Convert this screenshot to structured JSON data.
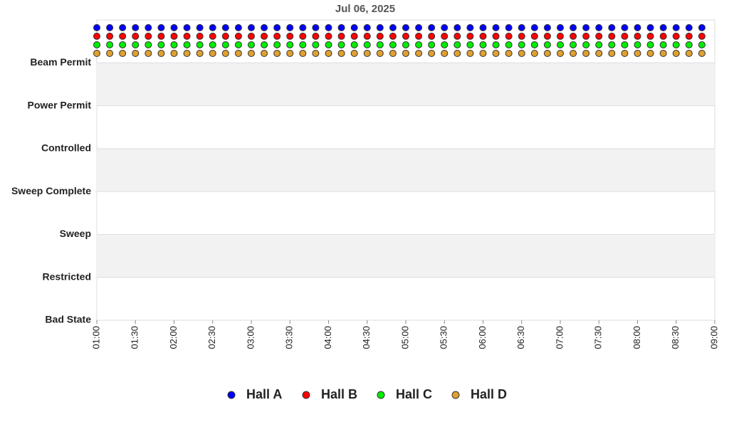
{
  "chart_data": {
    "type": "scatter",
    "title": "Jul 06, 2025",
    "x": [
      "01:00",
      "01:10",
      "01:20",
      "01:30",
      "01:40",
      "01:50",
      "02:00",
      "02:10",
      "02:20",
      "02:30",
      "02:40",
      "02:50",
      "03:00",
      "03:10",
      "03:20",
      "03:30",
      "03:40",
      "03:50",
      "04:00",
      "04:10",
      "04:20",
      "04:30",
      "04:40",
      "04:50",
      "05:00",
      "05:10",
      "05:20",
      "05:30",
      "05:40",
      "05:50",
      "06:00",
      "06:10",
      "06:20",
      "06:30",
      "06:40",
      "06:50",
      "07:00",
      "07:10",
      "07:20",
      "07:30",
      "07:40",
      "07:50",
      "08:00",
      "08:10",
      "08:20",
      "08:30",
      "08:40",
      "08:50"
    ],
    "series": [
      {
        "name": "Hall A",
        "color": "#0000ff",
        "values": [
          6.82,
          6.82,
          6.82,
          6.82,
          6.82,
          6.82,
          6.82,
          6.82,
          6.82,
          6.82,
          6.82,
          6.82,
          6.82,
          6.82,
          6.82,
          6.82,
          6.82,
          6.82,
          6.82,
          6.82,
          6.82,
          6.82,
          6.82,
          6.82,
          6.82,
          6.82,
          6.82,
          6.82,
          6.82,
          6.82,
          6.82,
          6.82,
          6.82,
          6.82,
          6.82,
          6.82,
          6.82,
          6.82,
          6.82,
          6.82,
          6.82,
          6.82,
          6.82,
          6.82,
          6.82,
          6.82,
          6.82,
          6.82
        ]
      },
      {
        "name": "Hall B",
        "color": "#ff0000",
        "values": [
          6.62,
          6.62,
          6.62,
          6.62,
          6.62,
          6.62,
          6.62,
          6.62,
          6.62,
          6.62,
          6.62,
          6.62,
          6.62,
          6.62,
          6.62,
          6.62,
          6.62,
          6.62,
          6.62,
          6.62,
          6.62,
          6.62,
          6.62,
          6.62,
          6.62,
          6.62,
          6.62,
          6.62,
          6.62,
          6.62,
          6.62,
          6.62,
          6.62,
          6.62,
          6.62,
          6.62,
          6.62,
          6.62,
          6.62,
          6.62,
          6.62,
          6.62,
          6.62,
          6.62,
          6.62,
          6.62,
          6.62,
          6.62
        ]
      },
      {
        "name": "Hall C",
        "color": "#00ee00",
        "values": [
          6.42,
          6.42,
          6.42,
          6.42,
          6.42,
          6.42,
          6.42,
          6.42,
          6.42,
          6.42,
          6.42,
          6.42,
          6.42,
          6.42,
          6.42,
          6.42,
          6.42,
          6.42,
          6.42,
          6.42,
          6.42,
          6.42,
          6.42,
          6.42,
          6.42,
          6.42,
          6.42,
          6.42,
          6.42,
          6.42,
          6.42,
          6.42,
          6.42,
          6.42,
          6.42,
          6.42,
          6.42,
          6.42,
          6.42,
          6.42,
          6.42,
          6.42,
          6.42,
          6.42,
          6.42,
          6.42,
          6.42,
          6.42
        ]
      },
      {
        "name": "Hall D",
        "color": "#e0a030",
        "values": [
          6.22,
          6.22,
          6.22,
          6.22,
          6.22,
          6.22,
          6.22,
          6.22,
          6.22,
          6.22,
          6.22,
          6.22,
          6.22,
          6.22,
          6.22,
          6.22,
          6.22,
          6.22,
          6.22,
          6.22,
          6.22,
          6.22,
          6.22,
          6.22,
          6.22,
          6.22,
          6.22,
          6.22,
          6.22,
          6.22,
          6.22,
          6.22,
          6.22,
          6.22,
          6.22,
          6.22,
          6.22,
          6.22,
          6.22,
          6.22,
          6.22,
          6.22,
          6.22,
          6.22,
          6.22,
          6.22,
          6.22,
          6.22
        ]
      }
    ],
    "xlim": [
      "01:00",
      "09:00"
    ],
    "xticks": [
      "01:00",
      "01:30",
      "02:00",
      "02:30",
      "03:00",
      "03:30",
      "04:00",
      "04:30",
      "05:00",
      "05:30",
      "06:00",
      "06:30",
      "07:00",
      "07:30",
      "08:00",
      "08:30",
      "09:00"
    ],
    "ylim": [
      0,
      7
    ],
    "yticks": [
      {
        "value": 0,
        "label": "Bad State"
      },
      {
        "value": 1,
        "label": "Restricted"
      },
      {
        "value": 2,
        "label": "Sweep"
      },
      {
        "value": 3,
        "label": "Sweep Complete"
      },
      {
        "value": 4,
        "label": "Controlled"
      },
      {
        "value": 5,
        "label": "Power Permit"
      },
      {
        "value": 6,
        "label": "Beam Permit"
      }
    ],
    "grid": true,
    "legend": "bottom"
  }
}
